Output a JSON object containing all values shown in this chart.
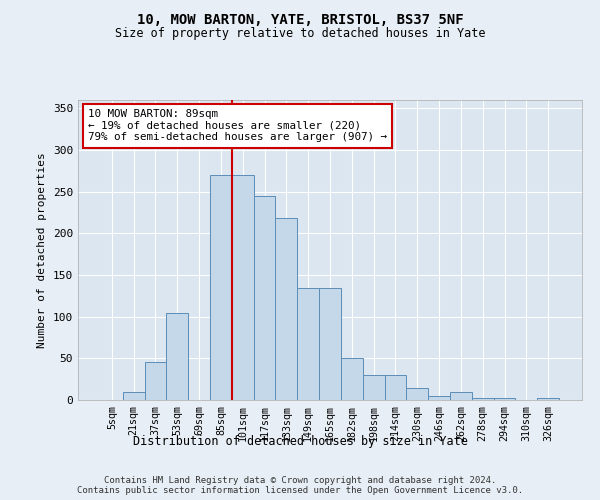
{
  "title1": "10, MOW BARTON, YATE, BRISTOL, BS37 5NF",
  "title2": "Size of property relative to detached houses in Yate",
  "xlabel": "Distribution of detached houses by size in Yate",
  "ylabel": "Number of detached properties",
  "bar_labels": [
    "5sqm",
    "21sqm",
    "37sqm",
    "53sqm",
    "69sqm",
    "85sqm",
    "101sqm",
    "117sqm",
    "133sqm",
    "149sqm",
    "165sqm",
    "182sqm",
    "198sqm",
    "214sqm",
    "230sqm",
    "246sqm",
    "262sqm",
    "278sqm",
    "294sqm",
    "310sqm",
    "326sqm"
  ],
  "bar_values": [
    0,
    10,
    46,
    105,
    0,
    270,
    270,
    245,
    218,
    135,
    135,
    50,
    30,
    30,
    15,
    5,
    10,
    2,
    2,
    0,
    3
  ],
  "bar_color": "#c5d8ea",
  "bar_edge_color": "#5b8db8",
  "vertical_line_x": 5.5,
  "annotation_text": "10 MOW BARTON: 89sqm\n← 19% of detached houses are smaller (220)\n79% of semi-detached houses are larger (907) →",
  "annotation_box_color": "#ffffff",
  "annotation_box_edge": "#cc0000",
  "vertical_line_color": "#cc0000",
  "background_color": "#e8eef5",
  "plot_bg_color": "#dce6f0",
  "footer": "Contains HM Land Registry data © Crown copyright and database right 2024.\nContains public sector information licensed under the Open Government Licence v3.0.",
  "ylim": [
    0,
    360
  ],
  "yticks": [
    0,
    50,
    100,
    150,
    200,
    250,
    300,
    350
  ]
}
